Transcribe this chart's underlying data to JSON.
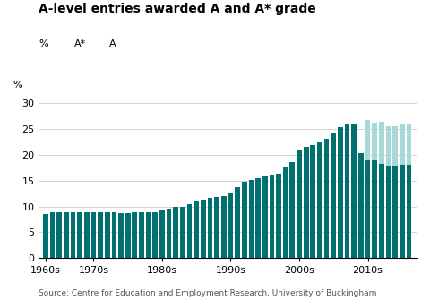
{
  "title": "A-level entries awarded A and A* grade",
  "ylabel": "%",
  "source": "Source: Centre for Education and Employment Research, University of Buckingham",
  "color_A": "#007070",
  "color_Astar": "#a8d8d8",
  "background_color": "#ffffff",
  "grid_color": "#cccccc",
  "years": [
    1963,
    1964,
    1965,
    1966,
    1967,
    1968,
    1969,
    1970,
    1971,
    1972,
    1973,
    1974,
    1975,
    1976,
    1977,
    1978,
    1979,
    1980,
    1981,
    1982,
    1983,
    1984,
    1985,
    1986,
    1987,
    1988,
    1989,
    1990,
    1991,
    1992,
    1993,
    1994,
    1995,
    1996,
    1997,
    1998,
    1999,
    2000,
    2001,
    2002,
    2003,
    2004,
    2005,
    2006,
    2007,
    2008,
    2009,
    2010,
    2011,
    2012,
    2013,
    2014,
    2015,
    2016
  ],
  "A_values": [
    8.6,
    8.9,
    8.9,
    8.8,
    8.8,
    8.8,
    8.8,
    8.8,
    8.8,
    8.8,
    8.8,
    8.7,
    8.7,
    8.8,
    8.8,
    8.8,
    8.9,
    9.4,
    9.5,
    9.9,
    10.0,
    10.5,
    11.0,
    11.3,
    11.7,
    11.8,
    12.0,
    12.5,
    13.7,
    14.8,
    15.2,
    15.5,
    15.8,
    16.1,
    16.3,
    17.5,
    18.6,
    20.8,
    21.5,
    21.9,
    22.5,
    23.1,
    24.2,
    25.3,
    25.9,
    25.9,
    20.4,
    18.9,
    19.0,
    18.3,
    17.9,
    17.9,
    18.1,
    18.1
  ],
  "Astar_values": [
    0,
    0,
    0,
    0,
    0,
    0,
    0,
    0,
    0,
    0,
    0,
    0,
    0,
    0,
    0,
    0,
    0,
    0,
    0,
    0,
    0,
    0,
    0,
    0,
    0,
    0,
    0,
    0,
    0,
    0,
    0,
    0,
    0,
    0,
    0,
    0,
    0,
    0,
    0,
    0,
    0,
    0,
    0,
    0,
    0,
    0,
    0,
    7.9,
    7.3,
    8.1,
    7.6,
    7.6,
    7.8,
    7.9
  ],
  "decade_ticks": [
    1963,
    1970,
    1980,
    1990,
    2000,
    2010
  ],
  "decade_labels": [
    "1960s",
    "1970s",
    "1980s",
    "1990s",
    "2000s",
    "2010s"
  ],
  "ylim": [
    0,
    32
  ],
  "yticks": [
    0,
    5,
    10,
    15,
    20,
    25,
    30
  ],
  "title_fontsize": 10,
  "legend_fontsize": 8,
  "tick_fontsize": 8,
  "source_fontsize": 6.5
}
